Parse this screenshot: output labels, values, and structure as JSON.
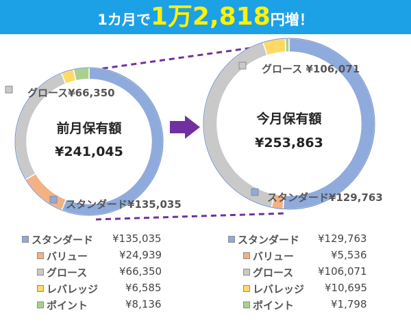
{
  "banner": {
    "pre": "1カ月で",
    "amount": "1万2,818",
    "post": "円増！"
  },
  "colors": {
    "standard": "#8faadc",
    "value": "#f4b183",
    "growth": "#c9c9c9",
    "leverage": "#ffd966",
    "point": "#a9d18e",
    "arrow": "#7030a0",
    "banner": "#1da1e6",
    "highlight": "#fff200"
  },
  "chart_data": [
    {
      "type": "pie",
      "title": "前月保有額",
      "total_label": "¥241,045",
      "categories": [
        "スタンダード",
        "バリュー",
        "グロース",
        "レバレッジ",
        "ポイント"
      ],
      "values": [
        135035,
        24939,
        66350,
        6585,
        8136
      ],
      "callouts": [
        "スタンダード¥135,035",
        "グロース¥66,350"
      ]
    },
    {
      "type": "pie",
      "title": "今月保有額",
      "total_label": "¥253,863",
      "categories": [
        "スタンダード",
        "バリュー",
        "グロース",
        "レバレッジ",
        "ポイント"
      ],
      "values": [
        129763,
        5536,
        106071,
        10695,
        1798
      ],
      "callouts": [
        "スタンダード¥129,763",
        "グロース ¥106,071"
      ]
    }
  ],
  "table_left": [
    {
      "label": "スタンダード",
      "value": "¥135,035"
    },
    {
      "label": "バリュー",
      "value": "¥24,939"
    },
    {
      "label": "グロース",
      "value": "¥66,350"
    },
    {
      "label": "レバレッジ",
      "value": "¥6,585"
    },
    {
      "label": "ポイント",
      "value": "¥8,136"
    }
  ],
  "table_right": [
    {
      "label": "スタンダード",
      "value": "¥129,763"
    },
    {
      "label": "バリュー",
      "value": "¥5,536"
    },
    {
      "label": "グロース",
      "value": "¥106,071"
    },
    {
      "label": "レバレッジ",
      "value": "¥10,695"
    },
    {
      "label": "ポイント",
      "value": "¥1,798"
    }
  ]
}
